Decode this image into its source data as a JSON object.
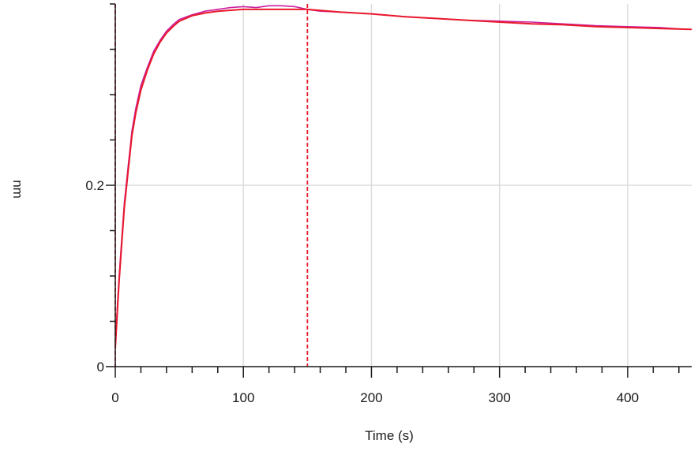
{
  "chart_data": {
    "type": "line",
    "title": "",
    "xlabel": "Time (s)",
    "ylabel": "nm",
    "xlim": [
      0,
      450
    ],
    "ylim": [
      0,
      0.4
    ],
    "x_ticks": [
      0,
      100,
      200,
      300,
      400
    ],
    "y_ticks": [
      0,
      0.2
    ],
    "x_tick_labels": [
      "0",
      "100",
      "200",
      "300",
      "400"
    ],
    "y_tick_labels": [
      "0",
      "0.2"
    ],
    "grid": true,
    "markers": [
      {
        "x": 0,
        "color": "#e8192c",
        "style": "dashed"
      },
      {
        "x": 150,
        "color": "#e8192c",
        "style": "dashed"
      }
    ],
    "series": [
      {
        "role": "measured",
        "color": "#cc1fa0",
        "x": [
          0,
          1,
          2,
          3,
          5,
          7,
          10,
          13,
          16,
          20,
          25,
          30,
          35,
          40,
          45,
          50,
          60,
          70,
          80,
          90,
          100,
          110,
          120,
          130,
          140,
          150,
          160,
          175,
          200,
          225,
          250,
          275,
          300,
          325,
          350,
          375,
          400,
          425,
          445
        ],
        "y": [
          0.025,
          0.05,
          0.075,
          0.1,
          0.14,
          0.18,
          0.22,
          0.26,
          0.285,
          0.31,
          0.33,
          0.348,
          0.36,
          0.37,
          0.377,
          0.383,
          0.388,
          0.392,
          0.394,
          0.396,
          0.397,
          0.396,
          0.398,
          0.398,
          0.397,
          0.394,
          0.392,
          0.391,
          0.389,
          0.386,
          0.384,
          0.382,
          0.381,
          0.38,
          0.378,
          0.376,
          0.375,
          0.374,
          0.372
        ]
      },
      {
        "role": "fit",
        "color": "#e8192c",
        "x": [
          0,
          1,
          2,
          3,
          5,
          7,
          10,
          13,
          16,
          20,
          25,
          30,
          35,
          40,
          45,
          50,
          60,
          70,
          80,
          90,
          100,
          110,
          120,
          130,
          140,
          150,
          175,
          200,
          225,
          250,
          275,
          300,
          325,
          350,
          375,
          400,
          425,
          450
        ],
        "y": [
          0.02,
          0.045,
          0.07,
          0.095,
          0.135,
          0.175,
          0.215,
          0.255,
          0.28,
          0.305,
          0.327,
          0.345,
          0.358,
          0.368,
          0.375,
          0.381,
          0.387,
          0.39,
          0.392,
          0.393,
          0.394,
          0.394,
          0.394,
          0.394,
          0.394,
          0.394,
          0.391,
          0.389,
          0.386,
          0.384,
          0.382,
          0.38,
          0.378,
          0.377,
          0.375,
          0.374,
          0.373,
          0.372
        ]
      }
    ]
  }
}
